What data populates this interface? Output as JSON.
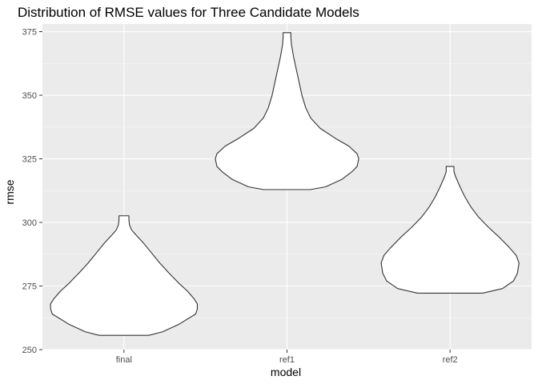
{
  "chart_data": {
    "type": "violin",
    "title": "Distribution of RMSE values for Three Candidate Models",
    "xlabel": "model",
    "ylabel": "rmse",
    "categories": [
      "final",
      "ref1",
      "ref2"
    ],
    "ylim": [
      250,
      378
    ],
    "yticks": [
      250,
      275,
      300,
      325,
      350,
      375
    ],
    "grid": true,
    "panel_background": "#ebebeb",
    "grid_color": "#ffffff",
    "violin_fill": "#ffffff",
    "violin_stroke": "#333333",
    "violins": [
      {
        "category": "final",
        "profile": [
          [
            255.6,
            0.45
          ],
          [
            257,
            0.7
          ],
          [
            260,
            1.0
          ],
          [
            264,
            1.3
          ],
          [
            266,
            1.33
          ],
          [
            268,
            1.33
          ],
          [
            270,
            1.27
          ],
          [
            273,
            1.15
          ],
          [
            276,
            1.0
          ],
          [
            280,
            0.82
          ],
          [
            284,
            0.65
          ],
          [
            288,
            0.5
          ],
          [
            292,
            0.35
          ],
          [
            295,
            0.22
          ],
          [
            297,
            0.14
          ],
          [
            299,
            0.1
          ],
          [
            301,
            0.09
          ],
          [
            302.6,
            0.09
          ]
        ]
      },
      {
        "category": "ref1",
        "profile": [
          [
            312.9,
            0.42
          ],
          [
            314,
            0.7
          ],
          [
            317,
            1.0
          ],
          [
            320,
            1.18
          ],
          [
            322,
            1.27
          ],
          [
            325,
            1.3
          ],
          [
            327,
            1.27
          ],
          [
            330,
            1.12
          ],
          [
            333,
            0.88
          ],
          [
            337,
            0.6
          ],
          [
            341,
            0.43
          ],
          [
            345,
            0.34
          ],
          [
            350,
            0.27
          ],
          [
            355,
            0.22
          ],
          [
            360,
            0.17
          ],
          [
            365,
            0.12
          ],
          [
            370,
            0.08
          ],
          [
            373,
            0.07
          ],
          [
            374.6,
            0.07
          ]
        ]
      },
      {
        "category": "ref2",
        "profile": [
          [
            272.2,
            0.59
          ],
          [
            274,
            0.95
          ],
          [
            277,
            1.15
          ],
          [
            280,
            1.22
          ],
          [
            284,
            1.25
          ],
          [
            287,
            1.2
          ],
          [
            290,
            1.08
          ],
          [
            294,
            0.9
          ],
          [
            298,
            0.7
          ],
          [
            302,
            0.52
          ],
          [
            306,
            0.38
          ],
          [
            310,
            0.27
          ],
          [
            314,
            0.18
          ],
          [
            318,
            0.1
          ],
          [
            320,
            0.07
          ],
          [
            322,
            0.07
          ]
        ]
      }
    ]
  }
}
